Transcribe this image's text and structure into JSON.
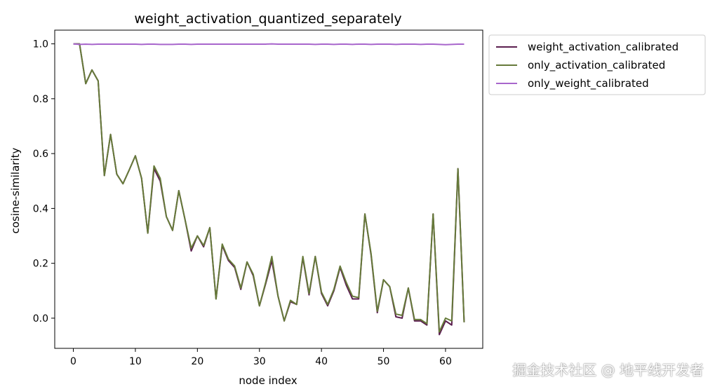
{
  "chart_data": {
    "type": "line",
    "title": "weight_activation_quantized_separately",
    "xlabel": "node index",
    "ylabel": "cosine-similarity",
    "xlim": [
      -3,
      66
    ],
    "ylim": [
      -0.11,
      1.05
    ],
    "xticks": [
      0,
      10,
      20,
      30,
      40,
      50,
      60
    ],
    "yticks": [
      0.0,
      0.2,
      0.4,
      0.6,
      0.8,
      1.0
    ],
    "xtick_labels": [
      "0",
      "10",
      "20",
      "30",
      "40",
      "50",
      "60"
    ],
    "ytick_labels": [
      "0.0",
      "0.2",
      "0.4",
      "0.6",
      "0.8",
      "1.0"
    ],
    "legend_position": "outside-upper-right",
    "grid": false,
    "x": [
      0,
      1,
      2,
      3,
      4,
      5,
      6,
      7,
      8,
      9,
      10,
      11,
      12,
      13,
      14,
      15,
      16,
      17,
      18,
      19,
      20,
      21,
      22,
      23,
      24,
      25,
      26,
      27,
      28,
      29,
      30,
      31,
      32,
      33,
      34,
      35,
      36,
      37,
      38,
      39,
      40,
      41,
      42,
      43,
      44,
      45,
      46,
      47,
      48,
      49,
      50,
      51,
      52,
      53,
      54,
      55,
      56,
      57,
      58,
      59,
      60,
      61,
      62,
      63
    ],
    "series": [
      {
        "name": "weight_activation_calibrated",
        "color": "#5b1f4f",
        "values": [
          1.0,
          1.0,
          0.855,
          0.905,
          0.865,
          0.52,
          0.67,
          0.525,
          0.49,
          0.54,
          0.592,
          0.51,
          0.31,
          0.545,
          0.5,
          0.37,
          0.32,
          0.465,
          0.36,
          0.245,
          0.3,
          0.26,
          0.33,
          0.07,
          0.265,
          0.21,
          0.185,
          0.105,
          0.205,
          0.155,
          0.045,
          0.125,
          0.21,
          0.08,
          -0.01,
          0.06,
          0.05,
          0.22,
          0.085,
          0.225,
          0.09,
          0.045,
          0.1,
          0.185,
          0.12,
          0.07,
          0.07,
          0.38,
          0.23,
          0.02,
          0.14,
          0.115,
          0.005,
          0.0,
          0.11,
          -0.01,
          -0.01,
          -0.025,
          0.38,
          -0.06,
          -0.01,
          -0.025,
          0.545,
          -0.015
        ]
      },
      {
        "name": "only_activation_calibrated",
        "color": "#667a3a",
        "values": [
          1.0,
          1.0,
          0.855,
          0.905,
          0.865,
          0.52,
          0.67,
          0.525,
          0.49,
          0.54,
          0.592,
          0.51,
          0.31,
          0.555,
          0.51,
          0.37,
          0.32,
          0.465,
          0.36,
          0.255,
          0.3,
          0.265,
          0.33,
          0.07,
          0.27,
          0.215,
          0.19,
          0.11,
          0.205,
          0.16,
          0.045,
          0.13,
          0.225,
          0.08,
          -0.01,
          0.065,
          0.05,
          0.225,
          0.09,
          0.225,
          0.095,
          0.05,
          0.105,
          0.19,
          0.13,
          0.08,
          0.075,
          0.38,
          0.235,
          0.025,
          0.14,
          0.115,
          0.015,
          0.01,
          0.11,
          -0.005,
          -0.005,
          -0.02,
          0.38,
          -0.05,
          0.0,
          -0.01,
          0.545,
          -0.015
        ]
      },
      {
        "name": "only_weight_calibrated",
        "color": "#a866cc",
        "values": [
          1.0,
          0.998,
          0.999,
          0.998,
          0.999,
          0.999,
          0.999,
          0.999,
          0.999,
          0.999,
          0.999,
          0.998,
          0.999,
          0.999,
          0.998,
          0.998,
          0.998,
          0.999,
          0.999,
          0.998,
          0.999,
          0.999,
          0.999,
          0.999,
          0.999,
          0.999,
          0.999,
          0.999,
          0.999,
          0.999,
          0.999,
          0.999,
          1.0,
          0.999,
          0.999,
          0.999,
          0.999,
          0.999,
          0.999,
          0.998,
          0.999,
          0.999,
          0.998,
          0.999,
          0.999,
          0.998,
          0.999,
          0.999,
          0.998,
          0.999,
          0.999,
          0.999,
          0.998,
          0.999,
          0.999,
          0.999,
          0.998,
          0.999,
          0.999,
          0.998,
          0.997,
          0.998,
          0.999,
          0.999
        ]
      }
    ]
  },
  "watermark": "掘金技术社区 @ 地平线开发者"
}
